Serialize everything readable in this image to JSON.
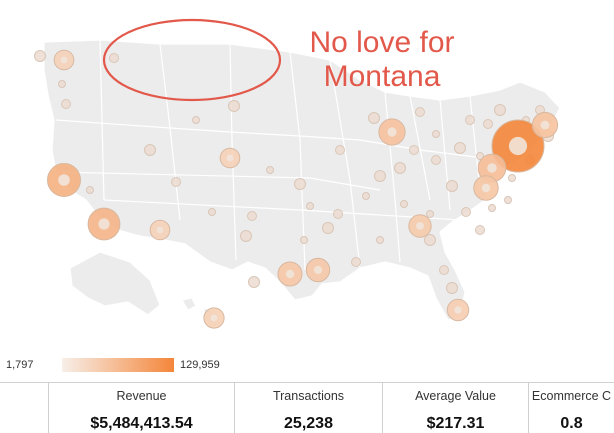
{
  "annotation": {
    "line1": "No love for",
    "line2": "Montana",
    "color": "#e2584a"
  },
  "legend": {
    "min": "1,797",
    "max": "129,959",
    "color_low": "#f7efe9",
    "color_high": "#f4863a"
  },
  "metrics": [
    {
      "label": "Revenue",
      "value": "$5,484,413.54"
    },
    {
      "label": "Transactions",
      "value": "25,238"
    },
    {
      "label": "Average Value",
      "value": "$217.31"
    },
    {
      "label": "Ecommerce C",
      "value": "0.8"
    }
  ],
  "map": {
    "region": "United States",
    "bubbles": [
      {
        "place": "New York",
        "value": 129959
      },
      {
        "place": "Los Angeles",
        "value": 38000
      },
      {
        "place": "San Francisco",
        "value": 42000
      },
      {
        "place": "Chicago",
        "value": 22000
      },
      {
        "place": "Philadelphia",
        "value": 26000
      },
      {
        "place": "Boston",
        "value": 20000
      },
      {
        "place": "Dallas",
        "value": 16000
      },
      {
        "place": "Houston",
        "value": 17000
      },
      {
        "place": "Washington",
        "value": 18000
      },
      {
        "place": "Atlanta",
        "value": 14000
      },
      {
        "place": "Miami",
        "value": 12000
      },
      {
        "place": "Seattle",
        "value": 9000
      },
      {
        "place": "Denver",
        "value": 9000
      },
      {
        "place": "Phoenix",
        "value": 9000
      },
      {
        "place": "Hawaii",
        "value": 10000
      }
    ]
  }
}
